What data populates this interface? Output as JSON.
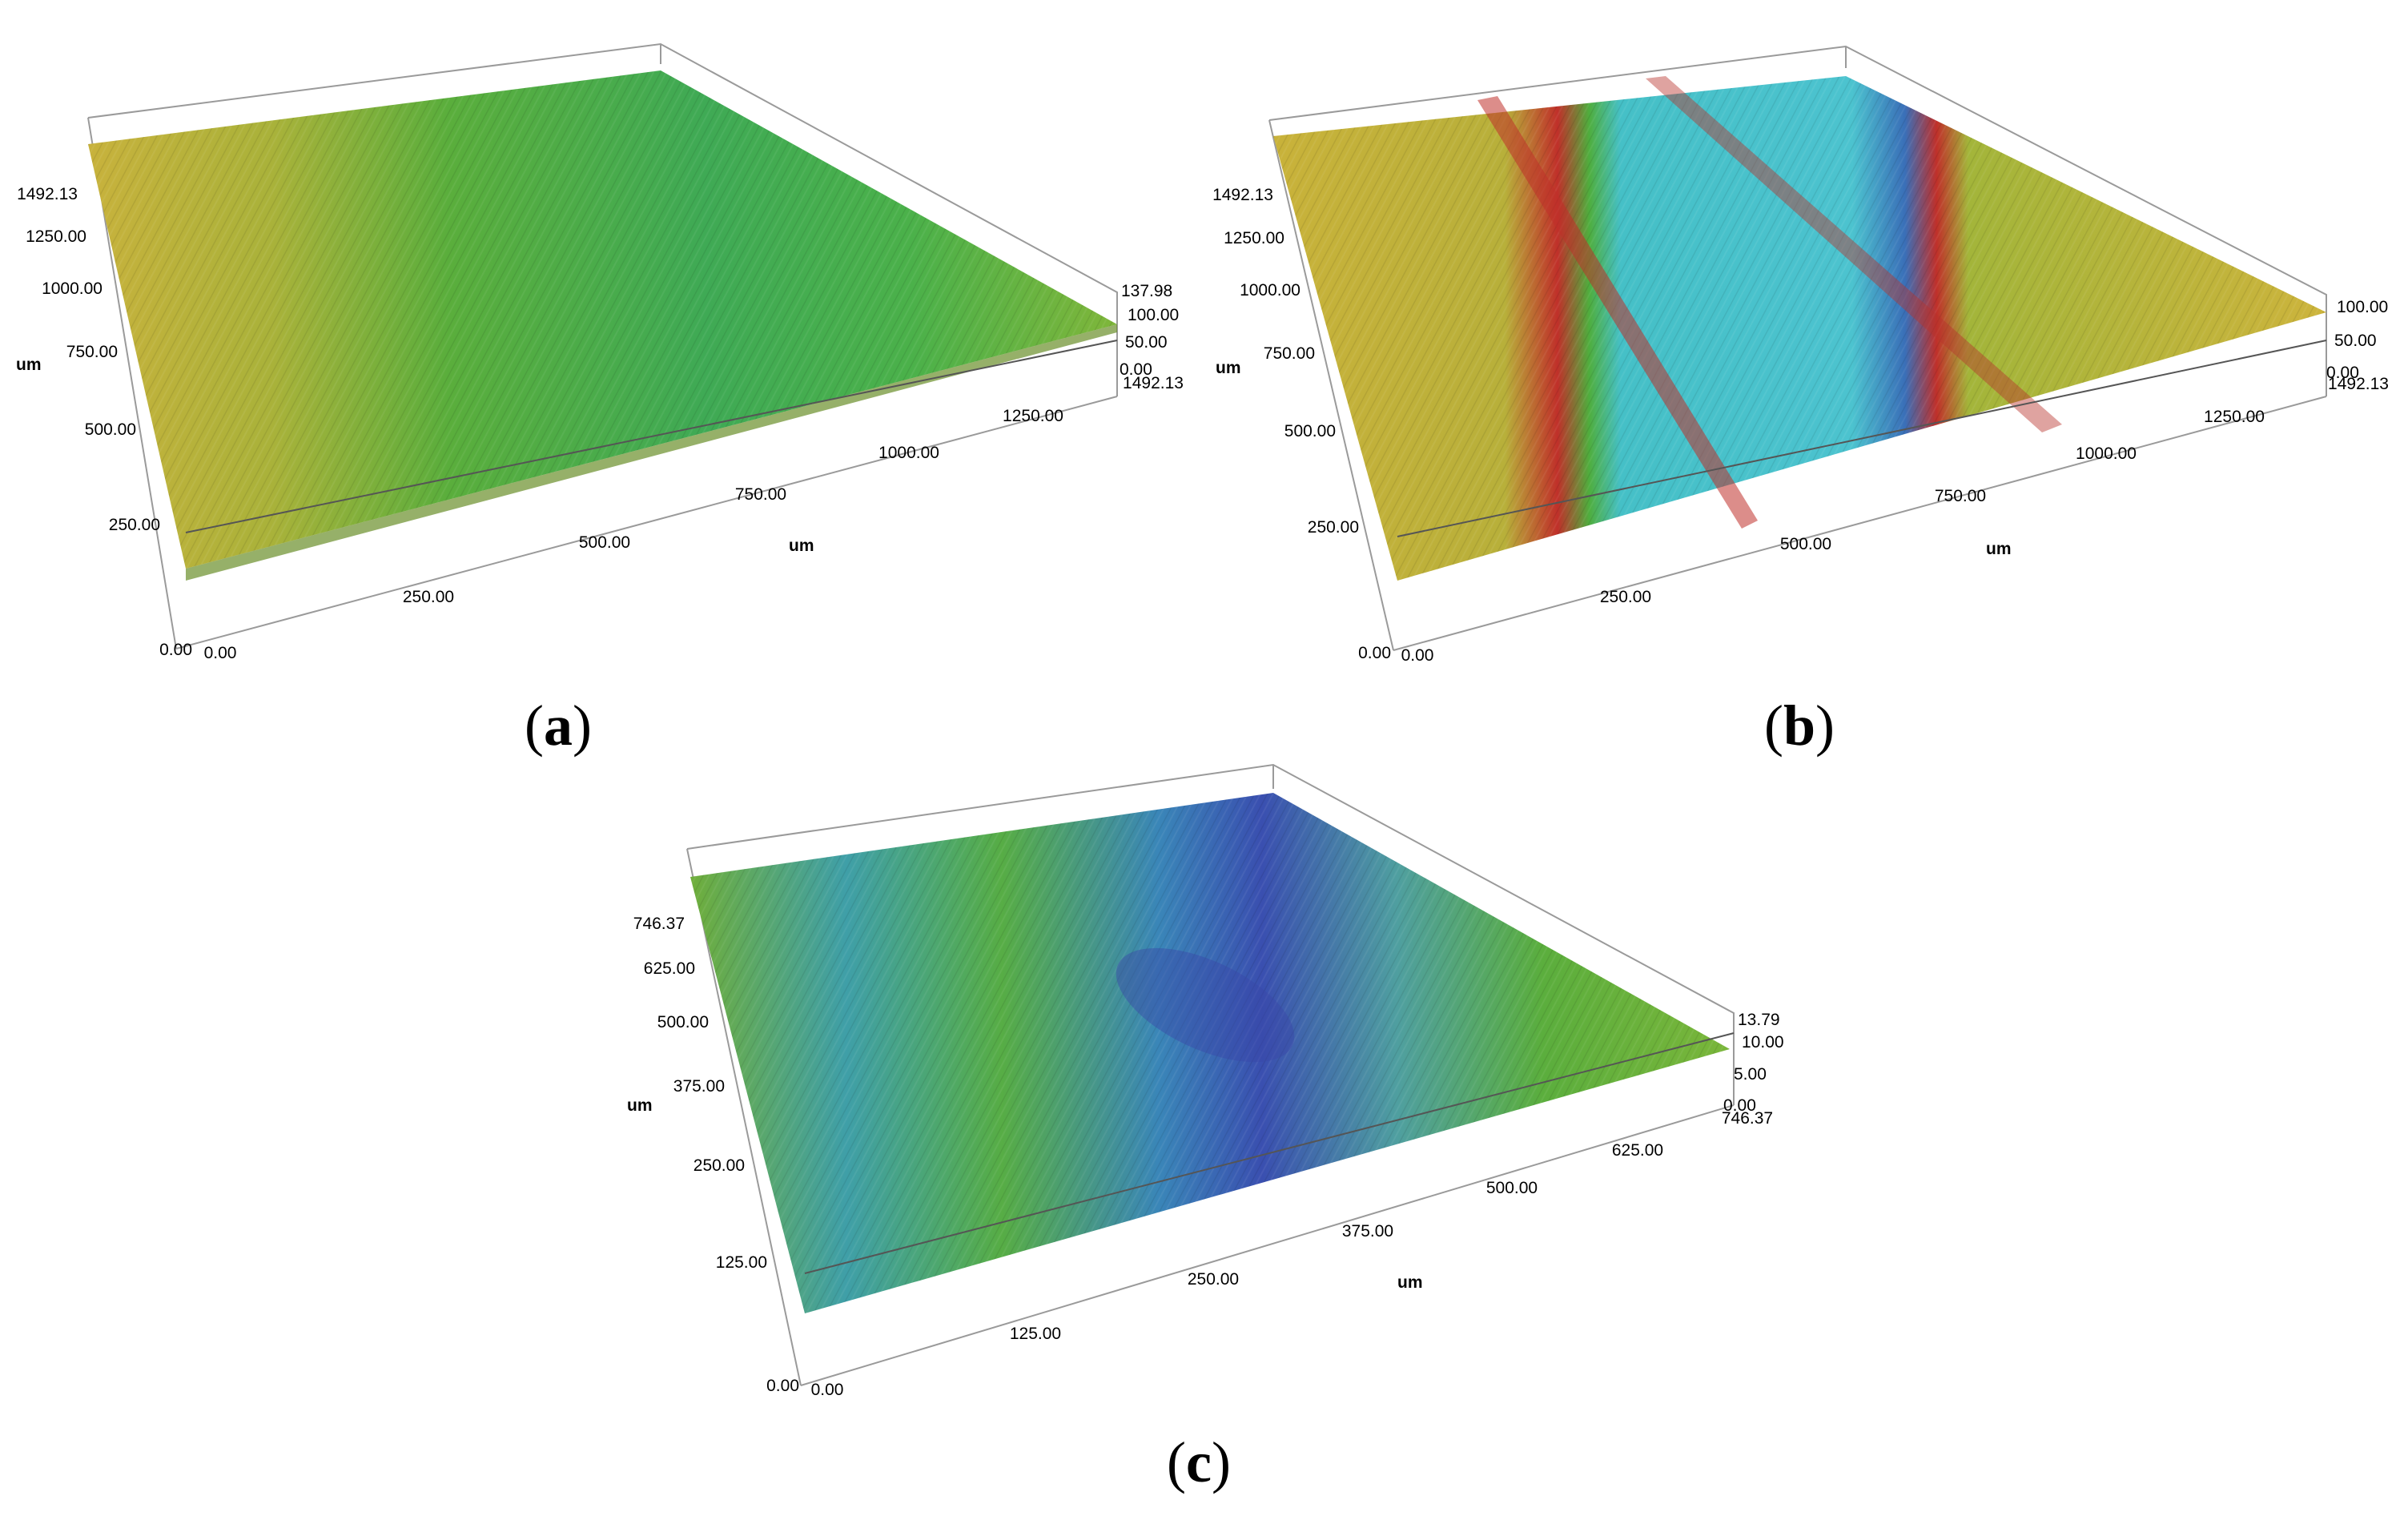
{
  "panels": [
    {
      "id": "a",
      "label": "a",
      "colormap": "a",
      "axes": {
        "y_ticks": [
          "0.00",
          "250.00",
          "500.00",
          "750.00",
          "1000.00",
          "1250.00",
          "1492.13"
        ],
        "y_label": "um",
        "x_ticks": [
          "0.00",
          "250.00",
          "500.00",
          "750.00",
          "1000.00",
          "1250.00",
          "1492.13"
        ],
        "x_label": "um",
        "z_ticks": [
          "0.00",
          "50.00",
          "100.00",
          "137.98"
        ]
      }
    },
    {
      "id": "b",
      "label": "b",
      "colormap": "b",
      "axes": {
        "y_ticks": [
          "0.00",
          "250.00",
          "500.00",
          "750.00",
          "1000.00",
          "1250.00",
          "1492.13"
        ],
        "y_label": "um",
        "x_ticks": [
          "0.00",
          "250.00",
          "500.00",
          "750.00",
          "1000.00",
          "1250.00",
          "1492.13"
        ],
        "x_label": "um",
        "z_ticks": [
          "0.00",
          "50.00",
          "100.00"
        ]
      }
    },
    {
      "id": "c",
      "label": "c",
      "colormap": "c",
      "axes": {
        "y_ticks": [
          "0.00",
          "125.00",
          "250.00",
          "375.00",
          "500.00",
          "625.00",
          "746.37"
        ],
        "y_label": "um",
        "x_ticks": [
          "0.00",
          "125.00",
          "250.00",
          "375.00",
          "500.00",
          "625.00",
          "746.37"
        ],
        "x_label": "um",
        "z_ticks": [
          "0.00",
          "5.00",
          "10.00",
          "13.79"
        ]
      }
    }
  ],
  "colors": {
    "axis_line": "#9a9a9a",
    "yellow": "#c9b23a",
    "green": "#4fae3e",
    "teal": "#3fb3a8",
    "cyan": "#4cc3cf",
    "blue": "#3b5fb8",
    "red": "#c0302a"
  }
}
